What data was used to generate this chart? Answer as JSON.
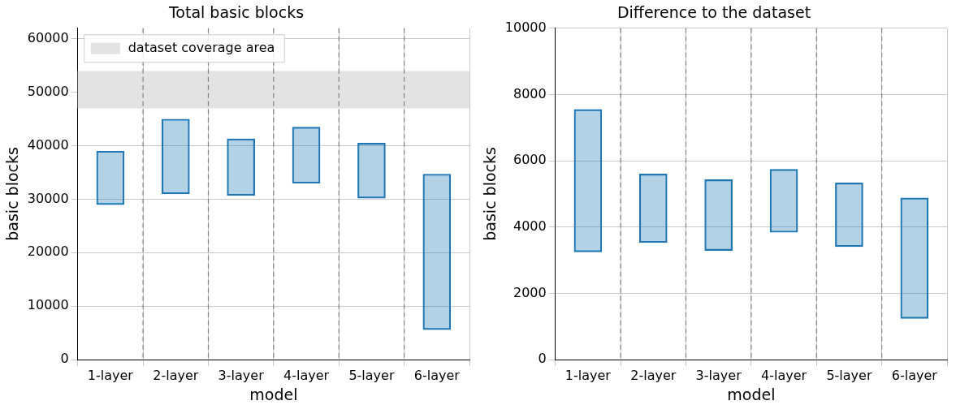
{
  "chart_data": [
    {
      "type": "bar",
      "title": "Total basic blocks",
      "xlabel": "model",
      "ylabel": "basic blocks",
      "x": [
        1,
        2,
        3,
        4,
        5,
        6
      ],
      "xlim": [
        0.5,
        6.5
      ],
      "xticks": [
        {
          "value": 1,
          "label": "1-layer"
        },
        {
          "value": 2,
          "label": "2-layer"
        },
        {
          "value": 3,
          "label": "3-layer"
        },
        {
          "value": 4,
          "label": "4-layer"
        },
        {
          "value": 5,
          "label": "5-layer"
        },
        {
          "value": 6,
          "label": "6-layer"
        }
      ],
      "base": [
        29000,
        31000,
        30700,
        33000,
        30200,
        5600
      ],
      "values": [
        10000,
        14000,
        10600,
        10500,
        10300,
        29100
      ],
      "color": "#1f77b4",
      "ylim": [
        0,
        62000
      ],
      "yticks": [
        0,
        10000,
        20000,
        30000,
        40000,
        50000,
        60000
      ],
      "grid": true,
      "bands": [
        {
          "axis": "y",
          "from": 47000,
          "to": 54000,
          "label": "dataset coverage area",
          "color": "#e3e3e3"
        }
      ],
      "ref_lines": [
        {
          "axis": "x",
          "value": 1.5,
          "color": "#808080",
          "line_style": "dashed"
        },
        {
          "axis": "x",
          "value": 2.5,
          "color": "#808080",
          "line_style": "dashed"
        },
        {
          "axis": "x",
          "value": 3.5,
          "color": "#808080",
          "line_style": "dashed"
        },
        {
          "axis": "x",
          "value": 4.5,
          "color": "#808080",
          "line_style": "dashed"
        },
        {
          "axis": "x",
          "value": 5.5,
          "color": "#808080",
          "line_style": "dashed"
        }
      ],
      "legend": "top left"
    },
    {
      "type": "bar",
      "title": "Difference to the dataset",
      "xlabel": "model",
      "ylabel": "basic blocks",
      "x": [
        1,
        2,
        3,
        4,
        5,
        6
      ],
      "xlim": [
        0.5,
        6.5
      ],
      "xticks": [
        {
          "value": 1,
          "label": "1-layer"
        },
        {
          "value": 2,
          "label": "2-layer"
        },
        {
          "value": 3,
          "label": "3-layer"
        },
        {
          "value": 4,
          "label": "4-layer"
        },
        {
          "value": 5,
          "label": "5-layer"
        },
        {
          "value": 6,
          "label": "6-layer"
        }
      ],
      "base": [
        3250,
        3530,
        3290,
        3840,
        3410,
        1240
      ],
      "values": [
        4300,
        2070,
        2140,
        1900,
        1920,
        3640
      ],
      "color": "#1f77b4",
      "ylim": [
        0,
        10000
      ],
      "yticks": [
        0,
        2000,
        4000,
        6000,
        8000,
        10000
      ],
      "grid": true,
      "ref_lines": [
        {
          "axis": "x",
          "value": 1.5,
          "color": "#808080",
          "line_style": "dashed"
        },
        {
          "axis": "x",
          "value": 2.5,
          "color": "#808080",
          "line_style": "dashed"
        },
        {
          "axis": "x",
          "value": 3.5,
          "color": "#808080",
          "line_style": "dashed"
        },
        {
          "axis": "x",
          "value": 4.5,
          "color": "#808080",
          "line_style": "dashed"
        },
        {
          "axis": "x",
          "value": 5.5,
          "color": "#808080",
          "line_style": "dashed"
        }
      ]
    }
  ]
}
